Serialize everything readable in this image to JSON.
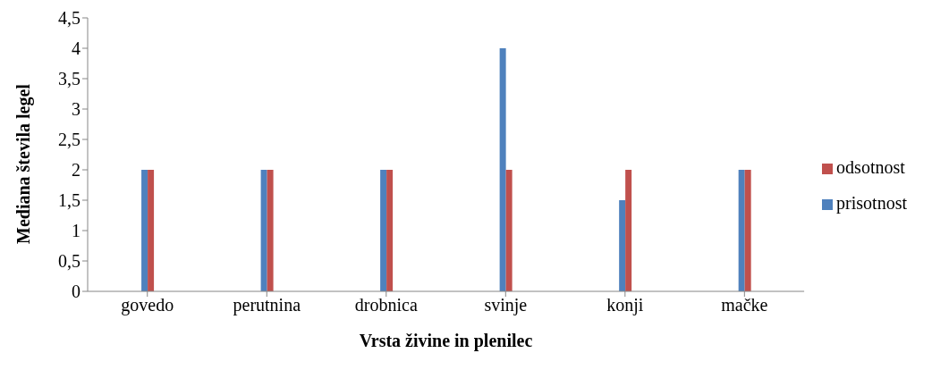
{
  "chart_data": {
    "type": "bar",
    "xlabel": "Vrsta živine in plenilec",
    "ylabel": "Mediana števila legel",
    "categories": [
      "govedo",
      "perutnina",
      "drobnica",
      "svinje",
      "konji",
      "mačke"
    ],
    "series": [
      {
        "name": "prisotnost",
        "color": "#4f81bd",
        "values": [
          2,
          2,
          2,
          4,
          1.5,
          2
        ]
      },
      {
        "name": "odsotnost",
        "color": "#c0504d",
        "values": [
          2,
          2,
          2,
          2,
          2,
          2
        ]
      }
    ],
    "ylim": [
      0,
      4.5
    ],
    "yticks": [
      0,
      {
        "value": 0.5,
        "label": "0,5"
      },
      1,
      {
        "value": 1.5,
        "label": "1,5"
      },
      2,
      {
        "value": 2.5,
        "label": "2,5"
      },
      3,
      {
        "value": 3.5,
        "label": "3,5"
      },
      4,
      {
        "value": 4.5,
        "label": "4,5"
      }
    ],
    "grid": false,
    "legend": "right"
  }
}
